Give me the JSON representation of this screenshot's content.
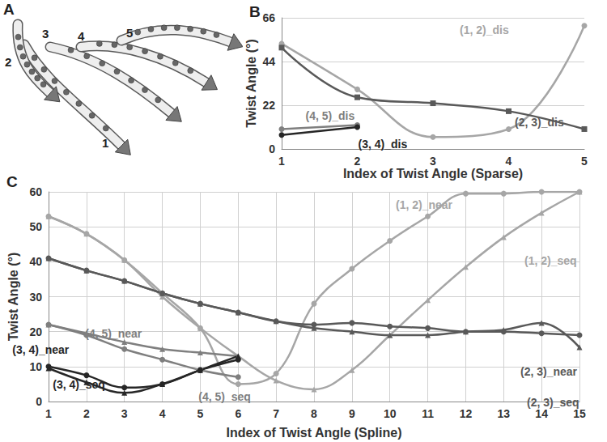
{
  "figure_panel": {
    "label": "A",
    "strand_labels": [
      "1",
      "2",
      "3",
      "4",
      "5"
    ]
  },
  "chart_data": [
    {
      "type": "line",
      "title": "B",
      "x_label": "Index of Twist Angle (Sparse)",
      "y_label": "Twist Angle (°)",
      "x": [
        1,
        2,
        3,
        4,
        5
      ],
      "xlim": [
        1,
        5
      ],
      "xticks": [
        1,
        2,
        3,
        4,
        5
      ],
      "ylim": [
        0,
        66
      ],
      "yticks": [
        0,
        22,
        44,
        66
      ],
      "grid": "y",
      "series": [
        {
          "name": "(1, 2)_dis",
          "color": "#a6a6a6",
          "marker": "circle",
          "line_style": "smooth",
          "values": [
            53,
            30,
            6,
            10,
            62
          ]
        },
        {
          "name": "(2, 3)_dis",
          "color": "#595959",
          "marker": "square",
          "line_style": "smooth",
          "values": [
            51,
            26,
            23,
            19,
            10
          ]
        },
        {
          "name": "(4, 5)_dis",
          "color": "#7f7f7f",
          "marker": "circle",
          "line_style": "smooth",
          "values": [
            10,
            12,
            null,
            null,
            null
          ]
        },
        {
          "name": "(3, 4)_dis",
          "color": "#262626",
          "marker": "circle",
          "line_style": "smooth",
          "values": [
            7,
            11,
            null,
            null,
            null
          ]
        }
      ]
    },
    {
      "type": "line",
      "title": "C",
      "x_label": "Index of Twist Angle (Spline)",
      "y_label": "Twist Angle (°)",
      "x": [
        1,
        2,
        3,
        4,
        5,
        6,
        7,
        8,
        9,
        10,
        11,
        12,
        13,
        14,
        15
      ],
      "xlim": [
        1,
        15
      ],
      "xticks": [
        1,
        2,
        3,
        4,
        5,
        6,
        7,
        8,
        9,
        10,
        11,
        12,
        13,
        14,
        15
      ],
      "ylim": [
        0,
        60
      ],
      "yticks": [
        0,
        10,
        20,
        30,
        40,
        50,
        60
      ],
      "grid": true,
      "series": [
        {
          "name": "(1, 2)_near",
          "color": "#a6a6a6",
          "marker": "circle",
          "line_style": "smooth",
          "values": [
            53,
            48,
            40.5,
            31,
            21,
            5,
            8,
            28,
            38,
            46,
            53,
            59.5,
            59.5,
            60,
            60
          ]
        },
        {
          "name": "(1, 2)_seq",
          "color": "#a6a6a6",
          "marker": "triangle",
          "line_style": "smooth",
          "values": [
            53,
            48,
            40.5,
            30,
            21,
            13,
            6,
            3.5,
            9,
            19,
            29,
            38.5,
            47,
            54,
            60
          ]
        },
        {
          "name": "(2, 3)_near",
          "color": "#595959",
          "marker": "circle",
          "line_style": "smooth",
          "values": [
            41,
            37.5,
            34.5,
            31,
            28,
            25.5,
            23,
            22,
            22.5,
            21.5,
            21,
            20,
            20,
            19.5,
            19
          ]
        },
        {
          "name": "(2, 3)_seq",
          "color": "#595959",
          "marker": "triangle",
          "line_style": "smooth",
          "values": [
            41,
            37.5,
            34.5,
            31,
            28,
            25.5,
            23,
            21,
            20,
            19,
            19,
            20,
            20.5,
            22.5,
            15.5
          ]
        },
        {
          "name": "(4, 5)_near",
          "color": "#7f7f7f",
          "marker": "circle",
          "line_style": "smooth",
          "values": [
            22,
            19,
            15,
            12,
            9,
            7,
            null,
            null,
            null,
            null,
            null,
            null,
            null,
            null,
            null
          ]
        },
        {
          "name": "(4, 5)_seq",
          "color": "#7f7f7f",
          "marker": "triangle",
          "line_style": "smooth",
          "values": [
            22,
            19.5,
            17,
            15,
            14,
            13,
            null,
            null,
            null,
            null,
            null,
            null,
            null,
            null,
            null
          ]
        },
        {
          "name": "(3, 4)_near",
          "color": "#262626",
          "marker": "circle",
          "line_style": "smooth",
          "values": [
            10,
            7.5,
            4,
            5,
            9,
            12,
            null,
            null,
            null,
            null,
            null,
            null,
            null,
            null,
            null
          ]
        },
        {
          "name": "(3, 4)_seq",
          "color": "#262626",
          "marker": "triangle",
          "line_style": "smooth",
          "values": [
            9.5,
            5.5,
            2.5,
            5,
            9,
            13,
            null,
            null,
            null,
            null,
            null,
            null,
            null,
            null,
            null
          ]
        }
      ]
    }
  ]
}
